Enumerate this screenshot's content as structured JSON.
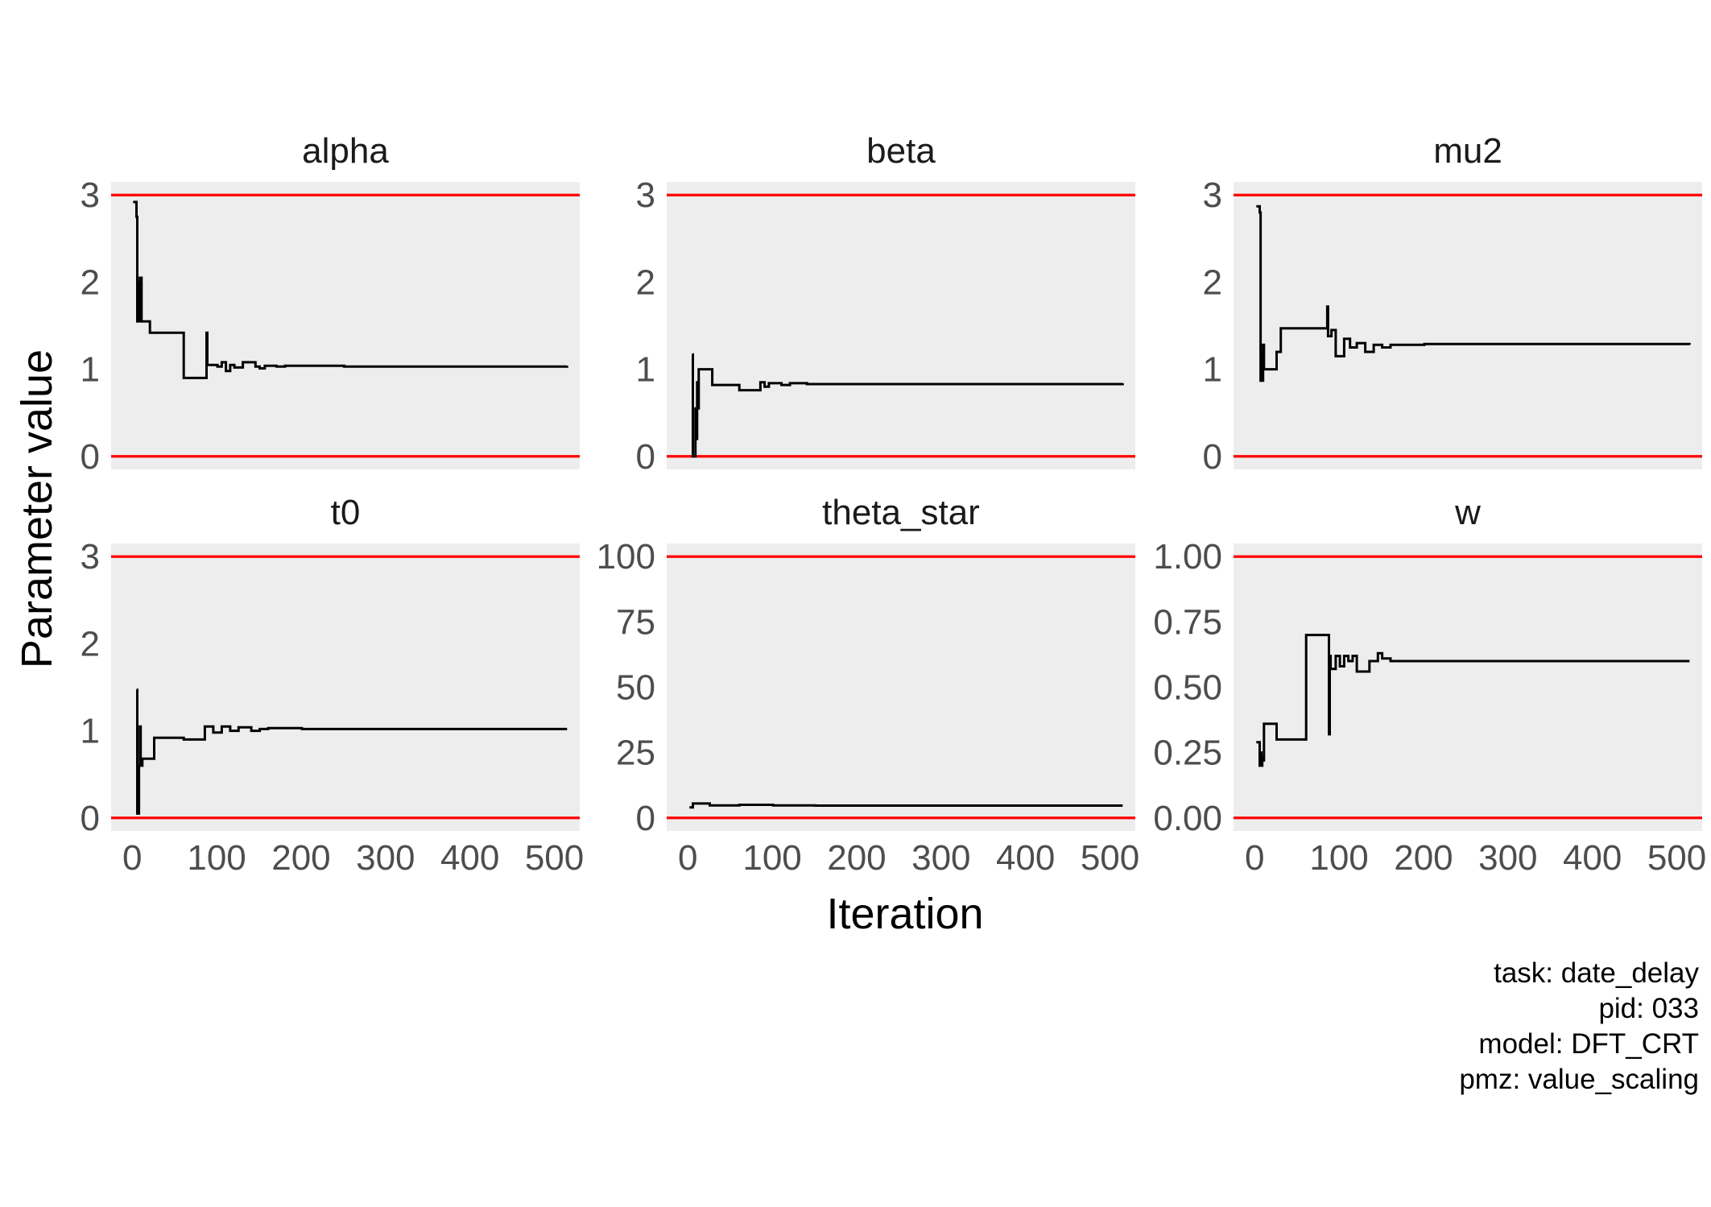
{
  "chart_data": {
    "type": "line",
    "xlabel": "Iteration",
    "ylabel": "Parameter value",
    "colors": {
      "trace": "#000000",
      "bound": "#ff0000",
      "panel_bg": "#ededed"
    },
    "caption": {
      "task": "task: date_delay",
      "pid": "pid: 033",
      "model": "model: DFT_CRT",
      "pmz": "pmz: value_scaling"
    },
    "panels": [
      {
        "name": "alpha",
        "xlim": [
          -25,
          530
        ],
        "ylim": [
          -0.15,
          3.15
        ],
        "x_ticks": [
          0,
          100,
          200,
          300,
          400,
          500
        ],
        "x_tick_labels": [
          "0",
          "100",
          "200",
          "300",
          "400",
          "500"
        ],
        "y_ticks": [
          0,
          1,
          2,
          3
        ],
        "y_tick_labels": [
          "0",
          "1",
          "2",
          "3"
        ],
        "bounds": [
          0,
          3
        ],
        "trace": [
          [
            1,
            2.92
          ],
          [
            4,
            2.92
          ],
          [
            5,
            2.75
          ],
          [
            6,
            1.55
          ],
          [
            7,
            2.0
          ],
          [
            8,
            1.55
          ],
          [
            9,
            2.05
          ],
          [
            11,
            1.55
          ],
          [
            20,
            1.55
          ],
          [
            21,
            1.42
          ],
          [
            60,
            1.42
          ],
          [
            61,
            0.9
          ],
          [
            87,
            0.9
          ],
          [
            88,
            1.42
          ],
          [
            89,
            1.05
          ],
          [
            100,
            1.05
          ],
          [
            101,
            1.03
          ],
          [
            105,
            1.03
          ],
          [
            106,
            1.08
          ],
          [
            110,
            1.08
          ],
          [
            111,
            0.98
          ],
          [
            115,
            0.98
          ],
          [
            116,
            1.05
          ],
          [
            120,
            1.05
          ],
          [
            121,
            1.02
          ],
          [
            130,
            1.02
          ],
          [
            131,
            1.08
          ],
          [
            145,
            1.08
          ],
          [
            146,
            1.03
          ],
          [
            150,
            1.03
          ],
          [
            151,
            1.01
          ],
          [
            156,
            1.01
          ],
          [
            157,
            1.04
          ],
          [
            170,
            1.04
          ],
          [
            171,
            1.03
          ],
          [
            180,
            1.03
          ],
          [
            181,
            1.04
          ],
          [
            250,
            1.04
          ],
          [
            251,
            1.03
          ],
          [
            515,
            1.04
          ]
        ]
      },
      {
        "name": "beta",
        "xlim": [
          -25,
          530
        ],
        "ylim": [
          -0.15,
          3.15
        ],
        "x_ticks": [
          0,
          100,
          200,
          300,
          400,
          500
        ],
        "x_tick_labels": [
          "0",
          "100",
          "200",
          "300",
          "400",
          "500"
        ],
        "y_ticks": [
          0,
          1,
          2,
          3
        ],
        "y_tick_labels": [
          "0",
          "1",
          "2",
          "3"
        ],
        "bounds": [
          0,
          3
        ],
        "trace": [
          [
            5,
            1.17
          ],
          [
            6,
            0.0
          ],
          [
            8,
            0.0
          ],
          [
            9,
            0.55
          ],
          [
            10,
            0.2
          ],
          [
            11,
            0.85
          ],
          [
            12,
            0.55
          ],
          [
            13,
            1.0
          ],
          [
            28,
            1.0
          ],
          [
            29,
            0.82
          ],
          [
            60,
            0.82
          ],
          [
            61,
            0.76
          ],
          [
            85,
            0.76
          ],
          [
            86,
            0.85
          ],
          [
            90,
            0.85
          ],
          [
            91,
            0.8
          ],
          [
            95,
            0.8
          ],
          [
            96,
            0.84
          ],
          [
            110,
            0.84
          ],
          [
            111,
            0.82
          ],
          [
            120,
            0.82
          ],
          [
            121,
            0.84
          ],
          [
            140,
            0.84
          ],
          [
            141,
            0.83
          ],
          [
            515,
            0.84
          ]
        ]
      },
      {
        "name": "mu2",
        "xlim": [
          -25,
          530
        ],
        "ylim": [
          -0.15,
          3.15
        ],
        "x_ticks": [
          0,
          100,
          200,
          300,
          400,
          500
        ],
        "x_tick_labels": [
          "0",
          "100",
          "200",
          "300",
          "400",
          "500"
        ],
        "y_ticks": [
          0,
          1,
          2,
          3
        ],
        "y_tick_labels": [
          "0",
          "1",
          "2",
          "3"
        ],
        "bounds": [
          0,
          3
        ],
        "trace": [
          [
            2,
            2.87
          ],
          [
            5,
            2.87
          ],
          [
            6,
            2.8
          ],
          [
            7,
            0.87
          ],
          [
            8,
            1.2
          ],
          [
            9,
            0.87
          ],
          [
            10,
            1.28
          ],
          [
            11,
            1.0
          ],
          [
            25,
            1.0
          ],
          [
            26,
            1.2
          ],
          [
            30,
            1.2
          ],
          [
            31,
            1.47
          ],
          [
            85,
            1.47
          ],
          [
            86,
            1.72
          ],
          [
            87,
            1.38
          ],
          [
            90,
            1.38
          ],
          [
            91,
            1.45
          ],
          [
            95,
            1.45
          ],
          [
            96,
            1.15
          ],
          [
            105,
            1.15
          ],
          [
            106,
            1.35
          ],
          [
            112,
            1.35
          ],
          [
            113,
            1.25
          ],
          [
            120,
            1.25
          ],
          [
            121,
            1.3
          ],
          [
            130,
            1.3
          ],
          [
            131,
            1.2
          ],
          [
            140,
            1.2
          ],
          [
            141,
            1.28
          ],
          [
            150,
            1.28
          ],
          [
            151,
            1.25
          ],
          [
            160,
            1.25
          ],
          [
            161,
            1.28
          ],
          [
            200,
            1.28
          ],
          [
            201,
            1.29
          ],
          [
            515,
            1.28
          ]
        ]
      },
      {
        "name": "t0",
        "xlim": [
          -25,
          530
        ],
        "ylim": [
          -0.15,
          3.15
        ],
        "x_ticks": [
          0,
          100,
          200,
          300,
          400,
          500
        ],
        "x_tick_labels": [
          "0",
          "100",
          "200",
          "300",
          "400",
          "500"
        ],
        "y_ticks": [
          0,
          1,
          2,
          3
        ],
        "y_tick_labels": [
          "0",
          "1",
          "2",
          "3"
        ],
        "bounds": [
          0,
          3
        ],
        "trace": [
          [
            5,
            1.47
          ],
          [
            6,
            0.05
          ],
          [
            7,
            0.05
          ],
          [
            8,
            0.6
          ],
          [
            9,
            1.05
          ],
          [
            10,
            0.6
          ],
          [
            12,
            0.68
          ],
          [
            25,
            0.68
          ],
          [
            26,
            0.92
          ],
          [
            60,
            0.92
          ],
          [
            61,
            0.9
          ],
          [
            85,
            0.9
          ],
          [
            86,
            1.05
          ],
          [
            95,
            1.05
          ],
          [
            96,
            0.98
          ],
          [
            105,
            0.98
          ],
          [
            106,
            1.05
          ],
          [
            115,
            1.05
          ],
          [
            116,
            1.0
          ],
          [
            125,
            1.0
          ],
          [
            126,
            1.04
          ],
          [
            140,
            1.04
          ],
          [
            141,
            1.0
          ],
          [
            150,
            1.0
          ],
          [
            151,
            1.02
          ],
          [
            160,
            1.02
          ],
          [
            161,
            1.03
          ],
          [
            200,
            1.03
          ],
          [
            201,
            1.02
          ],
          [
            515,
            1.02
          ]
        ]
      },
      {
        "name": "theta_star",
        "xlim": [
          -25,
          530
        ],
        "ylim": [
          -5,
          105
        ],
        "x_ticks": [
          0,
          100,
          200,
          300,
          400,
          500
        ],
        "x_tick_labels": [
          "0",
          "100",
          "200",
          "300",
          "400",
          "500"
        ],
        "y_ticks": [
          0,
          25,
          50,
          75,
          100
        ],
        "y_tick_labels": [
          "0",
          "25",
          "50",
          "75",
          "100"
        ],
        "bounds": [
          0,
          100
        ],
        "trace": [
          [
            2,
            4
          ],
          [
            5,
            4
          ],
          [
            6,
            5.5
          ],
          [
            25,
            5.5
          ],
          [
            26,
            4.8
          ],
          [
            60,
            4.8
          ],
          [
            61,
            5.0
          ],
          [
            100,
            5.0
          ],
          [
            101,
            4.8
          ],
          [
            150,
            4.8
          ],
          [
            151,
            4.7
          ],
          [
            515,
            4.7
          ]
        ]
      },
      {
        "name": "w",
        "xlim": [
          -25,
          530
        ],
        "ylim": [
          -0.05,
          1.05
        ],
        "x_ticks": [
          0,
          100,
          200,
          300,
          400,
          500
        ],
        "x_tick_labels": [
          "0",
          "100",
          "200",
          "300",
          "400",
          "500"
        ],
        "y_ticks": [
          0,
          0.25,
          0.5,
          0.75,
          1
        ],
        "y_tick_labels": [
          "0.00",
          "0.25",
          "0.50",
          "0.75",
          "1.00"
        ],
        "bounds": [
          0,
          1
        ],
        "trace": [
          [
            2,
            0.29
          ],
          [
            5,
            0.29
          ],
          [
            6,
            0.2
          ],
          [
            7,
            0.25
          ],
          [
            8,
            0.2
          ],
          [
            9,
            0.23
          ],
          [
            10,
            0.22
          ],
          [
            11,
            0.36
          ],
          [
            25,
            0.36
          ],
          [
            26,
            0.3
          ],
          [
            60,
            0.3
          ],
          [
            61,
            0.7
          ],
          [
            87,
            0.7
          ],
          [
            88,
            0.32
          ],
          [
            89,
            0.62
          ],
          [
            90,
            0.57
          ],
          [
            95,
            0.57
          ],
          [
            96,
            0.62
          ],
          [
            100,
            0.62
          ],
          [
            101,
            0.58
          ],
          [
            105,
            0.58
          ],
          [
            106,
            0.62
          ],
          [
            110,
            0.62
          ],
          [
            111,
            0.6
          ],
          [
            115,
            0.6
          ],
          [
            116,
            0.62
          ],
          [
            120,
            0.62
          ],
          [
            121,
            0.56
          ],
          [
            135,
            0.56
          ],
          [
            136,
            0.6
          ],
          [
            145,
            0.6
          ],
          [
            146,
            0.63
          ],
          [
            150,
            0.63
          ],
          [
            151,
            0.61
          ],
          [
            160,
            0.61
          ],
          [
            161,
            0.6
          ],
          [
            200,
            0.6
          ],
          [
            201,
            0.6
          ],
          [
            515,
            0.6
          ]
        ]
      }
    ]
  }
}
